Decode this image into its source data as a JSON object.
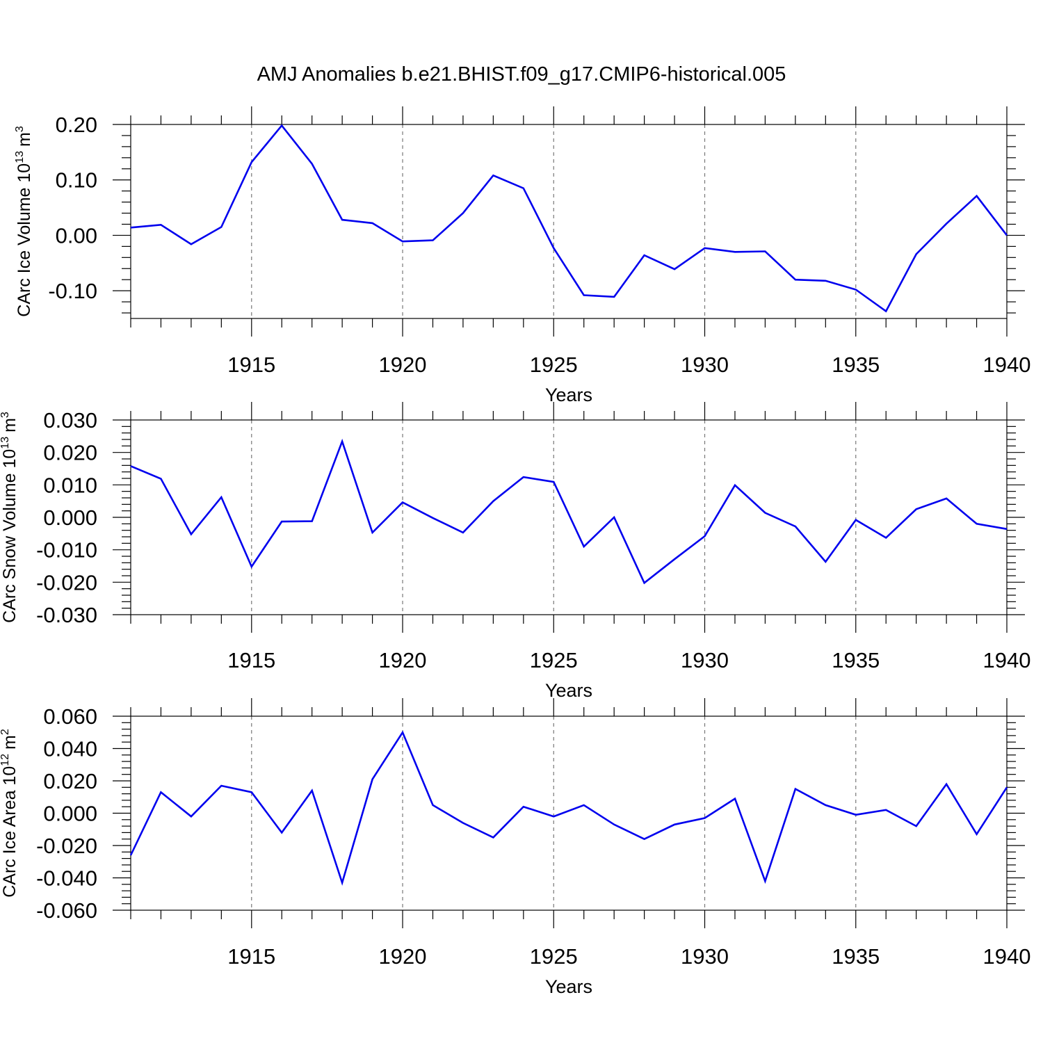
{
  "title": "AMJ Anomalies b.e21.BHIST.f09_g17.CMIP6-historical.005",
  "line_color": "#0000ee",
  "chart_data": [
    {
      "type": "line",
      "ylabel": "CArc Ice Volume 10",
      "ylabel_exponent": "13",
      "ylabel_unit": "m",
      "ylabel_unit_exponent": "3",
      "xlabel": "Years",
      "xlim": [
        1911,
        1940
      ],
      "ylim": [
        -0.15,
        0.2
      ],
      "yticks": [
        -0.1,
        0.0,
        0.1,
        0.2
      ],
      "ytick_labels": [
        "-0.10",
        "0.00",
        "0.10",
        "0.20"
      ],
      "xticks": [
        1915,
        1920,
        1925,
        1930,
        1935,
        1940
      ],
      "xtick_labels": [
        "1915",
        "1920",
        "1925",
        "1930",
        "1935",
        "1940"
      ],
      "grid": "dashed vertical lines at labeled years",
      "x": [
        1911,
        1912,
        1913,
        1914,
        1915,
        1916,
        1917,
        1918,
        1919,
        1920,
        1921,
        1922,
        1923,
        1924,
        1925,
        1926,
        1927,
        1928,
        1929,
        1930,
        1931,
        1932,
        1933,
        1934,
        1935,
        1936,
        1937,
        1938,
        1939,
        1940
      ],
      "values": [
        0.014,
        0.019,
        -0.016,
        0.015,
        0.132,
        0.198,
        0.129,
        0.028,
        0.022,
        -0.011,
        -0.009,
        0.04,
        0.108,
        0.085,
        -0.023,
        -0.108,
        -0.111,
        -0.036,
        -0.061,
        -0.023,
        -0.03,
        -0.029,
        -0.08,
        -0.082,
        -0.098,
        -0.137,
        -0.034,
        0.021,
        0.071,
        0.0
      ]
    },
    {
      "type": "line",
      "ylabel": "CArc Snow Volume 10",
      "ylabel_exponent": "13",
      "ylabel_unit": "m",
      "ylabel_unit_exponent": "3",
      "xlabel": "Years",
      "xlim": [
        1911,
        1940
      ],
      "ylim": [
        -0.03,
        0.03
      ],
      "yticks": [
        -0.03,
        -0.02,
        -0.01,
        0.0,
        0.01,
        0.02,
        0.03
      ],
      "ytick_labels": [
        "-0.030",
        "-0.020",
        "-0.010",
        "0.000",
        "0.010",
        "0.020",
        "0.030"
      ],
      "xticks": [
        1915,
        1920,
        1925,
        1930,
        1935,
        1940
      ],
      "xtick_labels": [
        "1915",
        "1920",
        "1925",
        "1930",
        "1935",
        "1940"
      ],
      "grid": "dashed vertical lines at labeled years",
      "x": [
        1911,
        1912,
        1913,
        1914,
        1915,
        1916,
        1917,
        1918,
        1919,
        1920,
        1921,
        1922,
        1923,
        1924,
        1925,
        1926,
        1927,
        1928,
        1929,
        1930,
        1931,
        1932,
        1933,
        1934,
        1935,
        1936,
        1937,
        1938,
        1939,
        1940
      ],
      "values": [
        0.0158,
        0.0119,
        -0.0052,
        0.0062,
        -0.0152,
        -0.0013,
        -0.0012,
        0.0234,
        -0.0047,
        0.0046,
        -0.0002,
        -0.0047,
        0.005,
        0.0124,
        0.0109,
        -0.009,
        0.0,
        -0.0202,
        -0.0129,
        -0.0058,
        0.0099,
        0.0014,
        -0.0028,
        -0.0137,
        -0.0008,
        -0.0063,
        0.0025,
        0.0058,
        -0.002,
        -0.0036
      ]
    },
    {
      "type": "line",
      "ylabel": "CArc Ice Area 10",
      "ylabel_exponent": "12",
      "ylabel_unit": "m",
      "ylabel_unit_exponent": "2",
      "xlabel": "Years",
      "xlim": [
        1911,
        1940
      ],
      "ylim": [
        -0.06,
        0.06
      ],
      "yticks": [
        -0.06,
        -0.04,
        -0.02,
        0.0,
        0.02,
        0.04,
        0.06
      ],
      "ytick_labels": [
        "-0.060",
        "-0.040",
        "-0.020",
        "0.000",
        "0.020",
        "0.040",
        "0.060"
      ],
      "xticks": [
        1915,
        1920,
        1925,
        1930,
        1935,
        1940
      ],
      "xtick_labels": [
        "1915",
        "1920",
        "1925",
        "1930",
        "1935",
        "1940"
      ],
      "grid": "dashed vertical lines at labeled years",
      "x": [
        1911,
        1912,
        1913,
        1914,
        1915,
        1916,
        1917,
        1918,
        1919,
        1920,
        1921,
        1922,
        1923,
        1924,
        1925,
        1926,
        1927,
        1928,
        1929,
        1930,
        1931,
        1932,
        1933,
        1934,
        1935,
        1936,
        1937,
        1938,
        1939,
        1940
      ],
      "values": [
        -0.026,
        0.013,
        -0.002,
        0.017,
        0.013,
        -0.012,
        0.014,
        -0.043,
        0.021,
        0.05,
        0.005,
        -0.006,
        -0.015,
        0.004,
        -0.002,
        0.005,
        -0.007,
        -0.016,
        -0.007,
        -0.003,
        0.009,
        -0.042,
        0.015,
        0.005,
        -0.001,
        0.002,
        -0.008,
        0.018,
        -0.013,
        0.016
      ]
    }
  ]
}
